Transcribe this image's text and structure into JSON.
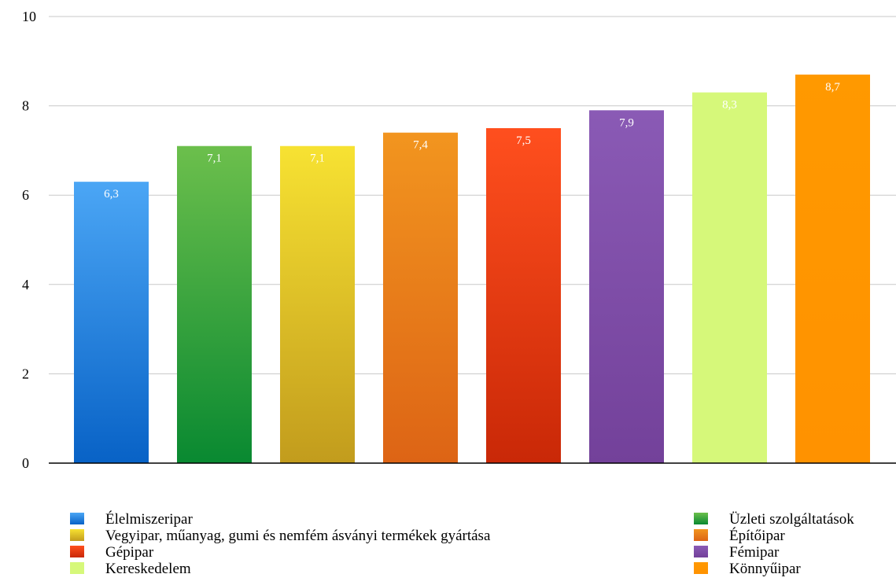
{
  "chart_data": {
    "type": "bar",
    "title": "",
    "xlabel": "",
    "ylabel": "",
    "ylim": [
      0,
      10
    ],
    "yticks": [
      "0",
      "2",
      "4",
      "6",
      "8",
      "10"
    ],
    "grid": true,
    "legend_position": "bottom",
    "categories": [
      "Élelmiszeripar",
      "Üzleti szolgáltatások",
      "Vegyipar, műanyag, gumi és nemfém ásványi termékek gyártása",
      "Építőipar",
      "Gépipar",
      "Fémipar",
      "Kereskedelem",
      "Könnyűipar"
    ],
    "values": [
      6.3,
      7.1,
      7.1,
      7.4,
      7.5,
      7.9,
      8.3,
      8.7
    ],
    "data_labels": [
      "6,3",
      "7,1",
      "7,1",
      "7,4",
      "7,5",
      "7,9",
      "8,3",
      "8,7"
    ],
    "colors": [
      {
        "top": "#4ba6f5",
        "bottom": "#0862c6"
      },
      {
        "top": "#6cbf4c",
        "bottom": "#098931"
      },
      {
        "top": "#f7e232",
        "bottom": "#c29c1d"
      },
      {
        "top": "#f2951f",
        "bottom": "#dd6415"
      },
      {
        "top": "#ff4f1e",
        "bottom": "#c92807"
      },
      {
        "top": "#8a5ab5",
        "bottom": "#73419a"
      },
      {
        "top": "#d6f87a",
        "bottom": "#d6f87a"
      },
      {
        "top": "#ff9900",
        "bottom": "#ff9200"
      }
    ]
  }
}
